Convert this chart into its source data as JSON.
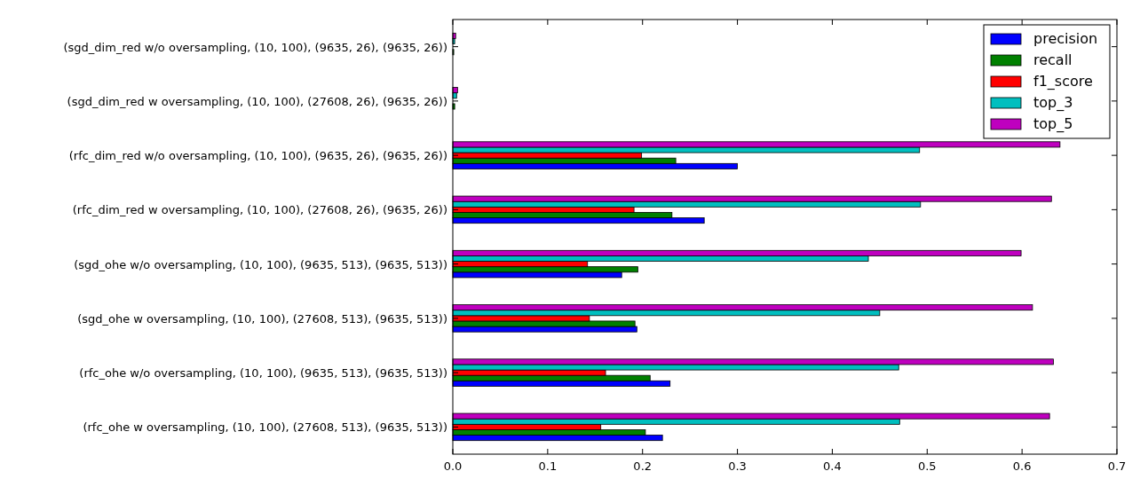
{
  "chart_data": {
    "type": "bar",
    "orientation": "horizontal",
    "categories": [
      "(sgd_dim_red w/o oversampling, (10, 100), (9635, 26), (9635, 26))",
      "(sgd_dim_red w oversampling, (10, 100), (27608, 26), (9635, 26))",
      "(rfc_dim_red w/o oversampling, (10, 100), (9635, 26), (9635, 26))",
      "(rfc_dim_red w oversampling, (10, 100), (27608, 26), (9635, 26))",
      "(sgd_ohe w/o oversampling, (10, 100), (9635, 513), (9635, 513))",
      "(sgd_ohe w oversampling, (10, 100), (27608, 513), (9635, 513))",
      "(rfc_ohe w/o oversampling, (10, 100), (9635, 513), (9635, 513))",
      "(rfc_ohe w oversampling, (10, 100), (27608, 513), (9635, 513))"
    ],
    "series": [
      {
        "name": "precision",
        "color": "#0000ff",
        "values": [
          0,
          0,
          0.3,
          0.265,
          0.178,
          0.194,
          0.229,
          0.221
        ]
      },
      {
        "name": "recall",
        "color": "#008000",
        "values": [
          0.001,
          0.002,
          0.235,
          0.231,
          0.195,
          0.192,
          0.208,
          0.203
        ]
      },
      {
        "name": "f1_score",
        "color": "#ff0000",
        "values": [
          0,
          0,
          0.199,
          0.191,
          0.142,
          0.144,
          0.161,
          0.156
        ]
      },
      {
        "name": "top_3",
        "color": "#00bfbf",
        "values": [
          0.002,
          0.004,
          0.492,
          0.493,
          0.438,
          0.45,
          0.47,
          0.471
        ]
      },
      {
        "name": "top_5",
        "color": "#bf00bf",
        "values": [
          0.003,
          0.005,
          0.64,
          0.631,
          0.599,
          0.611,
          0.633,
          0.629
        ]
      }
    ],
    "xlim": [
      0,
      0.7
    ],
    "xticks": [
      {
        "value": 0,
        "label": "0.0"
      },
      0.1,
      0.2,
      0.3,
      0.4,
      0.5,
      0.6,
      0.7
    ],
    "legend": "top right"
  }
}
